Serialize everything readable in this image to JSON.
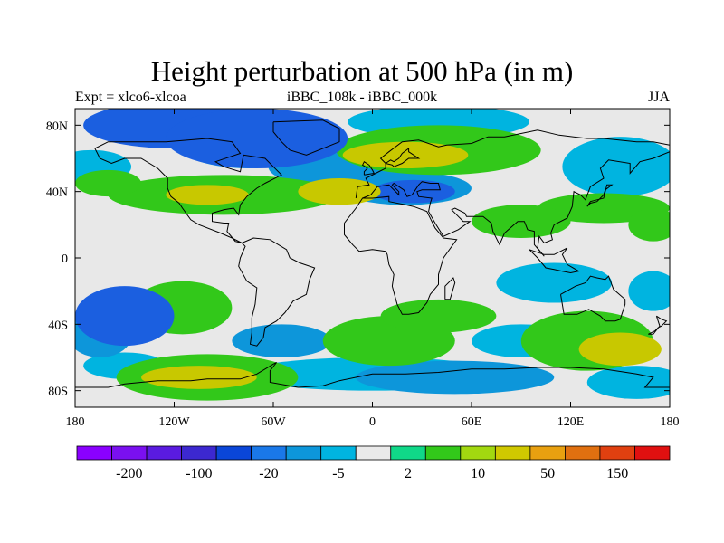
{
  "title": "Height perturbation at 500 hPa (in m)",
  "subtitle_left": "Expt = xlco6-xlcoa",
  "subtitle_center": "iBBC_108k - iBBC_000k",
  "subtitle_right": "JJA",
  "map": {
    "projection": "cylindrical-equidistant",
    "lon_range": [
      -180,
      180
    ],
    "lat_range": [
      -90,
      90
    ],
    "background_color": "#e8e8e8",
    "coastline_color": "#000000"
  },
  "x_ticks": [
    {
      "value": -180,
      "label": "180"
    },
    {
      "value": -120,
      "label": "120W"
    },
    {
      "value": -60,
      "label": "60W"
    },
    {
      "value": 0,
      "label": "0"
    },
    {
      "value": 60,
      "label": "60E"
    },
    {
      "value": 120,
      "label": "120E"
    },
    {
      "value": 180,
      "label": "180"
    }
  ],
  "y_ticks": [
    {
      "value": 80,
      "label": "80N"
    },
    {
      "value": 40,
      "label": "40N"
    },
    {
      "value": 0,
      "label": "0"
    },
    {
      "value": -40,
      "label": "40S"
    },
    {
      "value": -80,
      "label": "80S"
    }
  ],
  "colorbar": {
    "colors": [
      "#8a00ff",
      "#7a10f0",
      "#5a1be0",
      "#3c28d0",
      "#0a46d8",
      "#1a78e8",
      "#0d96da",
      "#00b4e0",
      "#eaeaea",
      "#10d888",
      "#32c81a",
      "#a2d810",
      "#d0c800",
      "#e8a010",
      "#e07010",
      "#e04010",
      "#e01010"
    ],
    "labels": [
      {
        "after_box": 1,
        "text": "-200"
      },
      {
        "after_box": 3,
        "text": "-100"
      },
      {
        "after_box": 5,
        "text": "-20"
      },
      {
        "after_box": 7,
        "text": "-5"
      },
      {
        "after_box": 9,
        "text": "2"
      },
      {
        "after_box": 11,
        "text": "10"
      },
      {
        "after_box": 13,
        "text": "50"
      },
      {
        "after_box": 15,
        "text": "150"
      }
    ]
  },
  "field_blobs": [
    {
      "lon": -120,
      "lat": 80,
      "rx": 55,
      "ry": 14,
      "level": "strong-neg"
    },
    {
      "lon": -70,
      "lat": 72,
      "rx": 55,
      "ry": 18,
      "level": "strong-neg"
    },
    {
      "lon": -75,
      "lat": 68,
      "rx": 42,
      "ry": 14,
      "level": "neg"
    },
    {
      "lon": -25,
      "lat": 55,
      "rx": 38,
      "ry": 12,
      "level": "neg"
    },
    {
      "lon": -170,
      "lat": 55,
      "rx": 24,
      "ry": 10,
      "level": "weak-neg"
    },
    {
      "lon": 40,
      "lat": 82,
      "rx": 55,
      "ry": 10,
      "level": "weak-neg"
    },
    {
      "lon": 150,
      "lat": 55,
      "rx": 35,
      "ry": 18,
      "level": "weak-neg"
    },
    {
      "lon": 20,
      "lat": 42,
      "rx": 40,
      "ry": 10,
      "level": "neg"
    },
    {
      "lon": 25,
      "lat": 40,
      "rx": 25,
      "ry": 7,
      "level": "strong-neg"
    },
    {
      "lon": 40,
      "lat": 65,
      "rx": 62,
      "ry": 15,
      "level": "pos"
    },
    {
      "lon": 20,
      "lat": 62,
      "rx": 38,
      "ry": 8,
      "level": "strong-pos"
    },
    {
      "lon": -90,
      "lat": 38,
      "rx": 70,
      "ry": 12,
      "level": "pos"
    },
    {
      "lon": -100,
      "lat": 38,
      "rx": 25,
      "ry": 6,
      "level": "strong-pos"
    },
    {
      "lon": -20,
      "lat": 40,
      "rx": 25,
      "ry": 8,
      "level": "strong-pos"
    },
    {
      "lon": -160,
      "lat": 45,
      "rx": 20,
      "ry": 8,
      "level": "pos"
    },
    {
      "lon": 140,
      "lat": 30,
      "rx": 40,
      "ry": 9,
      "level": "pos"
    },
    {
      "lon": 90,
      "lat": 22,
      "rx": 30,
      "ry": 10,
      "level": "pos"
    },
    {
      "lon": 170,
      "lat": 20,
      "rx": 15,
      "ry": 10,
      "level": "pos"
    },
    {
      "lon": -150,
      "lat": -35,
      "rx": 30,
      "ry": 18,
      "level": "strong-neg"
    },
    {
      "lon": -165,
      "lat": -45,
      "rx": 20,
      "ry": 15,
      "level": "neg"
    },
    {
      "lon": -115,
      "lat": -30,
      "rx": 30,
      "ry": 16,
      "level": "pos"
    },
    {
      "lon": -100,
      "lat": -72,
      "rx": 55,
      "ry": 14,
      "level": "pos"
    },
    {
      "lon": -105,
      "lat": -72,
      "rx": 35,
      "ry": 7,
      "level": "strong-pos"
    },
    {
      "lon": -150,
      "lat": -65,
      "rx": 25,
      "ry": 8,
      "level": "weak-neg"
    },
    {
      "lon": 10,
      "lat": -50,
      "rx": 40,
      "ry": 15,
      "level": "pos"
    },
    {
      "lon": 40,
      "lat": -35,
      "rx": 35,
      "ry": 10,
      "level": "pos"
    },
    {
      "lon": -55,
      "lat": -50,
      "rx": 30,
      "ry": 10,
      "level": "neg"
    },
    {
      "lon": 0,
      "lat": -70,
      "rx": 80,
      "ry": 10,
      "level": "weak-neg"
    },
    {
      "lon": 50,
      "lat": -72,
      "rx": 60,
      "ry": 10,
      "level": "neg"
    },
    {
      "lon": 90,
      "lat": -50,
      "rx": 30,
      "ry": 10,
      "level": "weak-neg"
    },
    {
      "lon": 130,
      "lat": -50,
      "rx": 40,
      "ry": 18,
      "level": "pos"
    },
    {
      "lon": 150,
      "lat": -55,
      "rx": 25,
      "ry": 10,
      "level": "strong-pos"
    },
    {
      "lon": 160,
      "lat": -75,
      "rx": 30,
      "ry": 10,
      "level": "weak-neg"
    },
    {
      "lon": 110,
      "lat": -15,
      "rx": 35,
      "ry": 12,
      "level": "weak-neg"
    },
    {
      "lon": 170,
      "lat": -20,
      "rx": 15,
      "ry": 12,
      "level": "weak-neg"
    }
  ]
}
